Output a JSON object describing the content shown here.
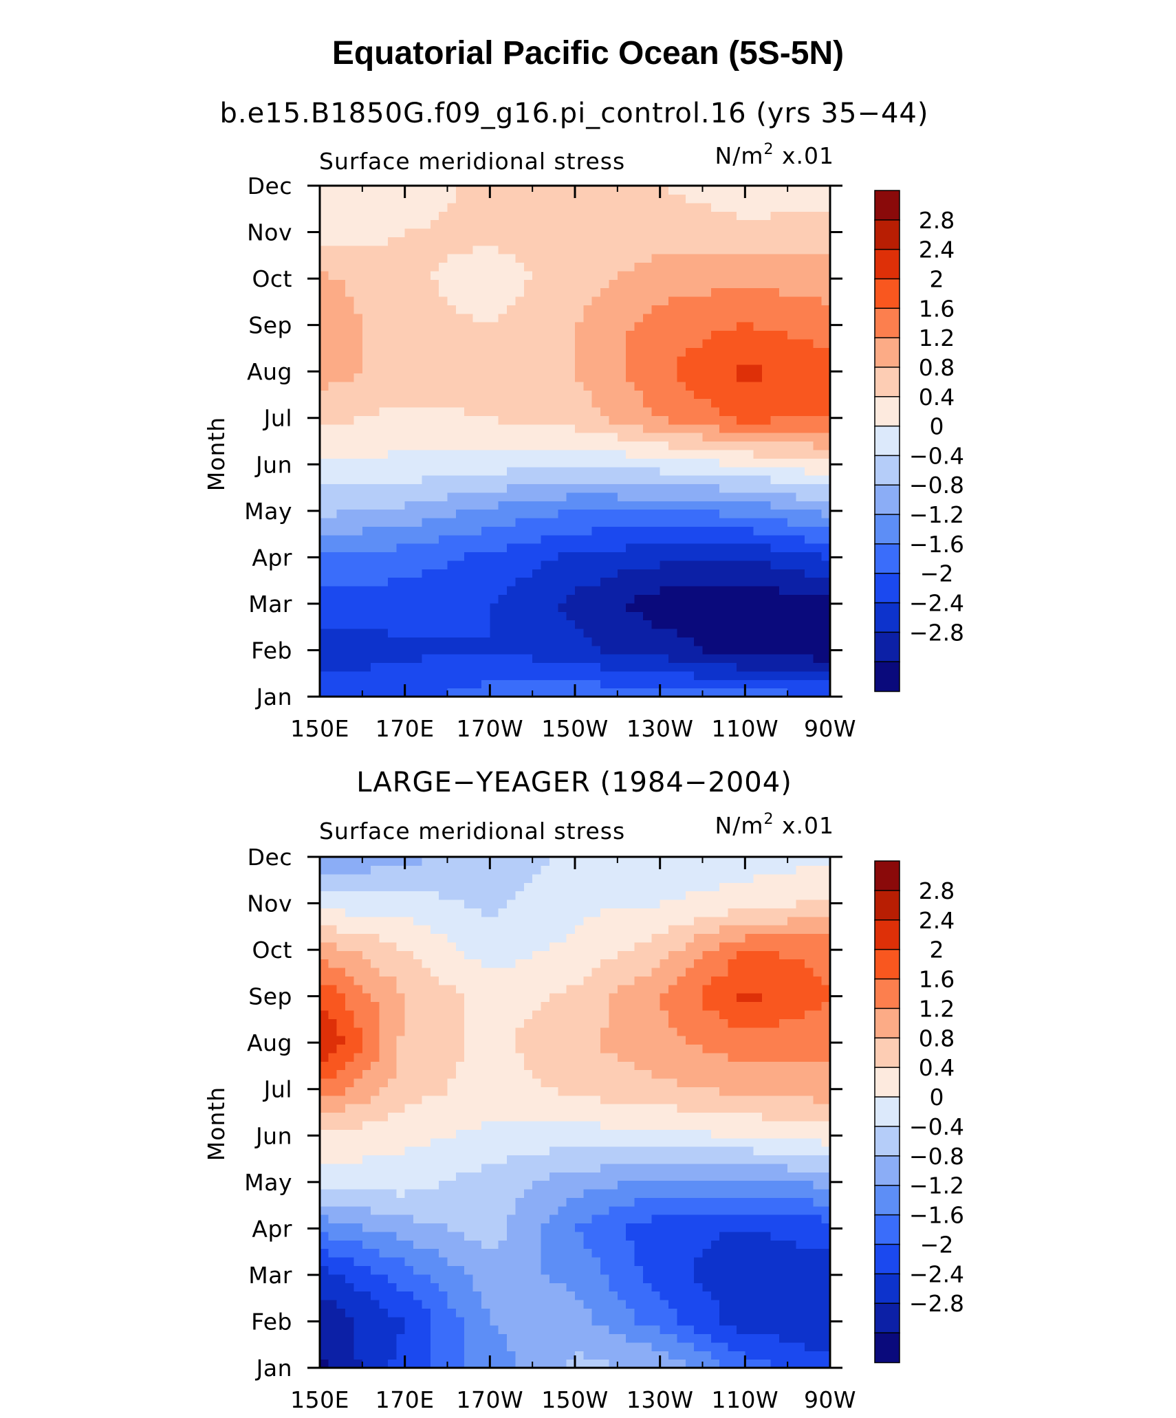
{
  "figure": {
    "title": "Equatorial Pacific Ocean (5S-5N)"
  },
  "colors": {
    "levels": [
      -2.8,
      -2.4,
      -2.0,
      -1.6,
      -1.2,
      -0.8,
      -0.4,
      0,
      0.4,
      0.8,
      1.2,
      1.6,
      2.0,
      2.4,
      2.8
    ],
    "palette": [
      "#0a0a7c",
      "#0c20a6",
      "#0d33cc",
      "#1b49ef",
      "#3a6dfa",
      "#5d8ef6",
      "#8badf6",
      "#b5cdf9",
      "#dce9fb",
      "#fdeade",
      "#fdcdb4",
      "#fcab86",
      "#fc7f4e",
      "#f9571f",
      "#de3008",
      "#b81e03",
      "#8a0a0a"
    ]
  },
  "chart_data": [
    {
      "type": "heatmap",
      "title": "b.e15.B1850G.f09_g16.pi_control.16 (yrs 35−44)",
      "left_label": "Surface meridional stress",
      "right_label": "N/m",
      "unit_sup": "2",
      "unit_suffix": " x.01",
      "ylabel": "Month",
      "x": [
        "150E",
        "170E",
        "170W",
        "150W",
        "130W",
        "110W",
        "90W"
      ],
      "y": [
        "Jan",
        "Feb",
        "Mar",
        "Apr",
        "May",
        "Jun",
        "Jul",
        "Aug",
        "Sep",
        "Oct",
        "Nov",
        "Dec"
      ],
      "colorbar_labels": [
        "2.8",
        "2.4",
        "2",
        "1.6",
        "1.2",
        "0.8",
        "0.4",
        "0",
        "−0.4",
        "−0.8",
        "−1.2",
        "−1.6",
        "−2",
        "−2.4",
        "−2.8"
      ],
      "values": [
        [
          -1.8,
          -1.7,
          -1.4,
          -1.3,
          -1.3,
          -1.4,
          -1.5
        ],
        [
          -2.2,
          -2.1,
          -2.0,
          -2.3,
          -2.6,
          -3.0,
          -3.1
        ],
        [
          -1.8,
          -1.8,
          -2.0,
          -2.5,
          -3.0,
          -3.1,
          -2.9
        ],
        [
          -1.3,
          -1.4,
          -1.7,
          -2.1,
          -2.3,
          -2.4,
          -2.0
        ],
        [
          -0.3,
          -0.5,
          -0.9,
          -1.2,
          -1.2,
          -1.1,
          -0.7
        ],
        [
          0.3,
          0.3,
          0.2,
          0.0,
          0.2,
          0.4,
          0.7
        ],
        [
          0.9,
          0.7,
          0.8,
          1.0,
          1.6,
          2.1,
          2.0
        ],
        [
          1.4,
          1.0,
          1.0,
          1.2,
          1.9,
          2.5,
          2.2
        ],
        [
          1.5,
          0.9,
          0.8,
          1.2,
          1.8,
          2.0,
          1.8
        ],
        [
          1.3,
          0.9,
          0.6,
          1.0,
          1.4,
          1.5,
          1.4
        ],
        [
          0.6,
          0.8,
          0.9,
          1.0,
          1.0,
          0.9,
          1.0
        ],
        [
          0.4,
          0.6,
          0.9,
          0.9,
          0.8,
          0.6,
          0.5
        ]
      ]
    },
    {
      "type": "heatmap",
      "title": "LARGE−YEAGER (1984−2004)",
      "left_label": "Surface meridional stress",
      "right_label": "N/m",
      "unit_sup": "2",
      "unit_suffix": " x.01",
      "ylabel": "Month",
      "x": [
        "150E",
        "170E",
        "170W",
        "150W",
        "130W",
        "110W",
        "90W"
      ],
      "y": [
        "Jan",
        "Feb",
        "Mar",
        "Apr",
        "May",
        "Jun",
        "Jul",
        "Aug",
        "Sep",
        "Oct",
        "Nov",
        "Dec"
      ],
      "colorbar_labels": [
        "2.8",
        "2.4",
        "2",
        "1.6",
        "1.2",
        "0.8",
        "0.4",
        "0",
        "−0.4",
        "−0.8",
        "−1.2",
        "−1.6",
        "−2",
        "−2.4",
        "−2.8"
      ],
      "values": [
        [
          -2.9,
          -1.8,
          -1.0,
          -0.3,
          -0.4,
          -1.4,
          -1.9
        ],
        [
          -2.7,
          -2.0,
          -0.8,
          -0.6,
          -1.4,
          -2.2,
          -2.3
        ],
        [
          -2.2,
          -1.4,
          -0.6,
          -0.9,
          -1.8,
          -2.3,
          -2.2
        ],
        [
          -1.1,
          -0.6,
          -0.2,
          -1.2,
          -1.9,
          -2.0,
          -1.8
        ],
        [
          0.2,
          0.2,
          -0.2,
          -0.6,
          -0.9,
          -0.9,
          -0.7
        ],
        [
          0.7,
          0.5,
          0.3,
          0.2,
          0.3,
          0.4,
          0.6
        ],
        [
          1.9,
          1.0,
          0.6,
          0.9,
          1.1,
          1.3,
          1.4
        ],
        [
          2.9,
          1.1,
          0.7,
          1.1,
          1.5,
          1.8,
          1.7
        ],
        [
          2.3,
          1.2,
          0.6,
          0.9,
          1.6,
          2.5,
          2.0
        ],
        [
          1.4,
          0.8,
          0.2,
          0.5,
          1.0,
          2.0,
          1.9
        ],
        [
          0.2,
          0.2,
          -0.1,
          0.3,
          0.4,
          0.6,
          0.9
        ],
        [
          -0.8,
          -0.5,
          -0.3,
          0.1,
          0.1,
          0.2,
          0.3
        ]
      ]
    }
  ]
}
